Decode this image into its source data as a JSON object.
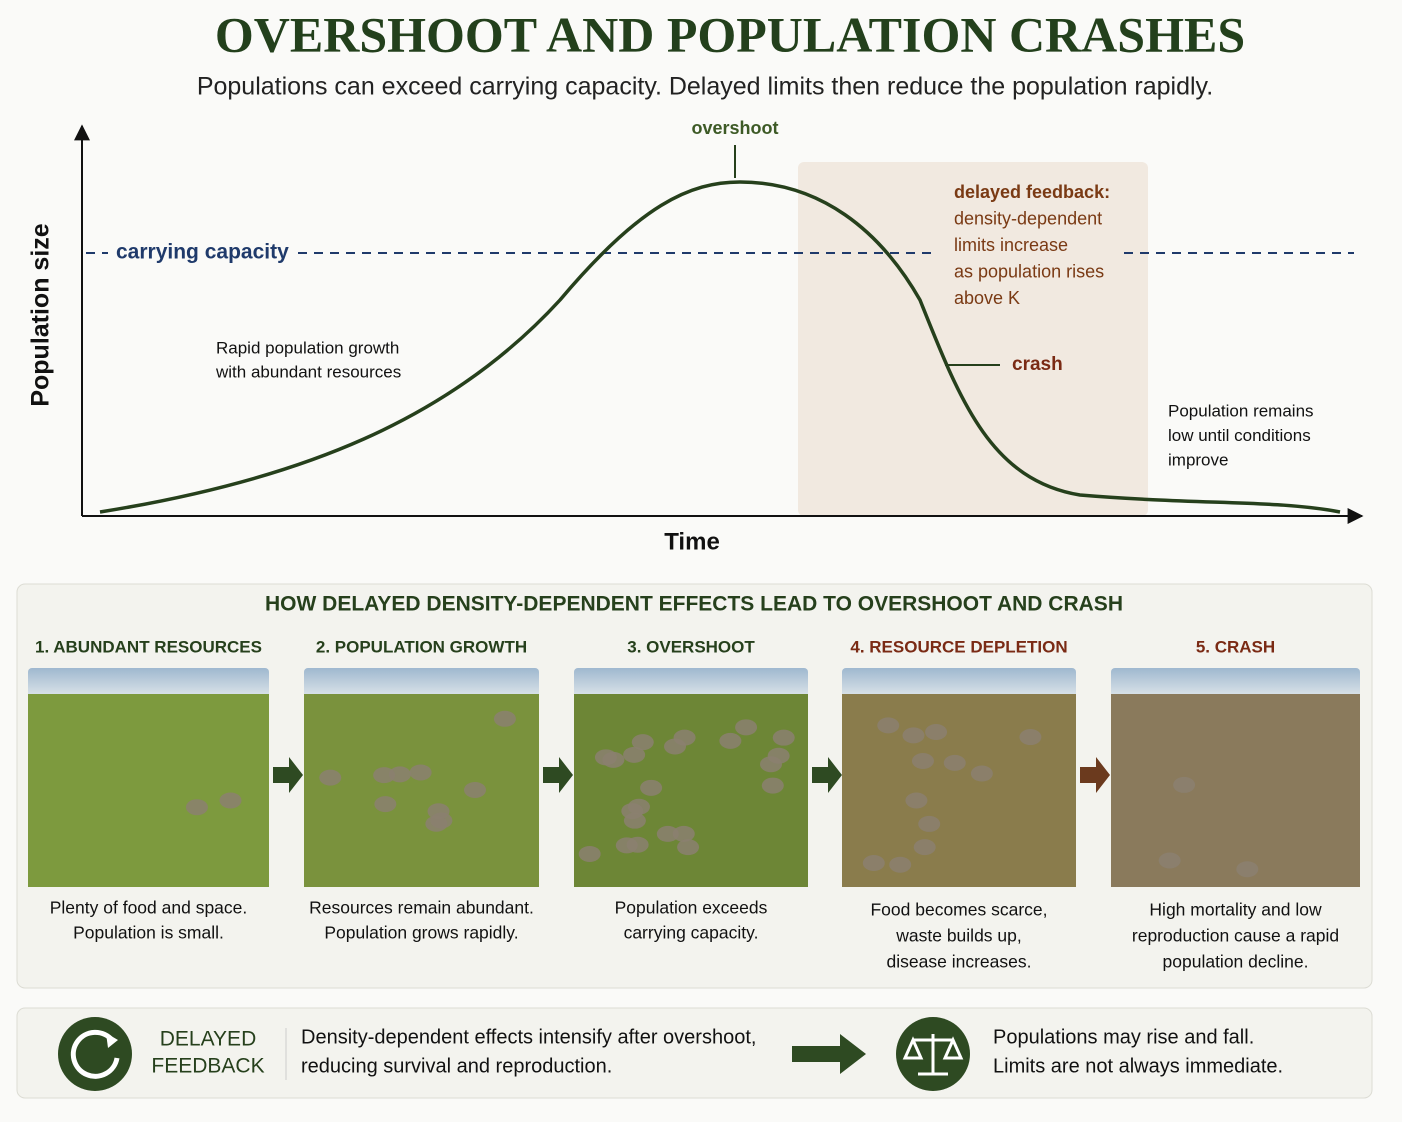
{
  "header": {
    "title": "OVERSHOOT AND POPULATION CRASHES",
    "subtitle": "Populations can exceed carrying capacity. Delayed limits then reduce the population rapidly."
  },
  "chart": {
    "y_label": "Population size",
    "x_label": "Time",
    "peak_label": "overshoot",
    "capacity_label": "carrying capacity",
    "growth_note": [
      "Rapid population growth",
      "with abundant resources"
    ],
    "feedback_note": [
      "delayed feedback:",
      "density-dependent",
      "limits increase",
      "as population rises",
      "above K"
    ],
    "crash_label": "crash",
    "low_note": [
      "Population remains",
      "low until conditions",
      "improve"
    ]
  },
  "panel": {
    "title": "HOW DELAYED DENSITY-DEPENDENT EFFECTS LEAD TO OVERSHOOT AND CRASH",
    "steps": [
      {
        "title": "1. ABUNDANT RESOURCES",
        "caption": [
          "Plenty of food and space.",
          "Population is small."
        ]
      },
      {
        "title": "2. POPULATION GROWTH",
        "caption": [
          "Resources remain abundant.",
          "Population grows rapidly."
        ]
      },
      {
        "title": "3. OVERSHOOT",
        "caption": [
          "Population exceeds",
          "carrying capacity."
        ]
      },
      {
        "title": "4. RESOURCE DEPLETION",
        "caption": [
          "Food becomes scarce,",
          "waste builds up,",
          "disease increases."
        ]
      },
      {
        "title": "5. CRASH",
        "caption": [
          "High mortality and low",
          "reproduction cause a rapid",
          "population decline."
        ]
      }
    ]
  },
  "footer": {
    "label": [
      "DELAYED",
      "FEEDBACK"
    ],
    "text": [
      "Density-dependent effects intensify after overshoot,",
      "reducing survival and reproduction."
    ],
    "outcome": [
      "Populations may rise and fall.",
      "Limits are not always immediate."
    ]
  }
}
